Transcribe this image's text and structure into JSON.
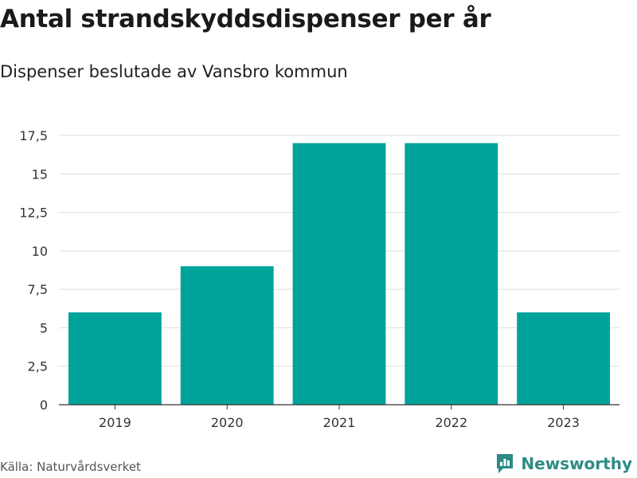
{
  "title": "Antal strandskyddsdispenser per år",
  "subtitle": "Dispenser beslutade av Vansbro kommun",
  "source": "Källa: Naturvårdsverket",
  "brand": "Newsworthy",
  "colors": {
    "bar": "#00a39a",
    "grid": "#dddddd",
    "axis": "#333333",
    "brand": "#2e8b85"
  },
  "chart_data": {
    "type": "bar",
    "categories": [
      "2019",
      "2020",
      "2021",
      "2022",
      "2023"
    ],
    "values": [
      6,
      9,
      17,
      17,
      6
    ],
    "ylim": [
      0,
      17.5
    ],
    "yticks": [
      0,
      2.5,
      5,
      7.5,
      10,
      12.5,
      15,
      17.5
    ],
    "ytick_labels": [
      "0",
      "2,5",
      "5",
      "7,5",
      "10",
      "12,5",
      "15",
      "17,5"
    ],
    "grid": true,
    "xlabel": "",
    "ylabel": ""
  }
}
